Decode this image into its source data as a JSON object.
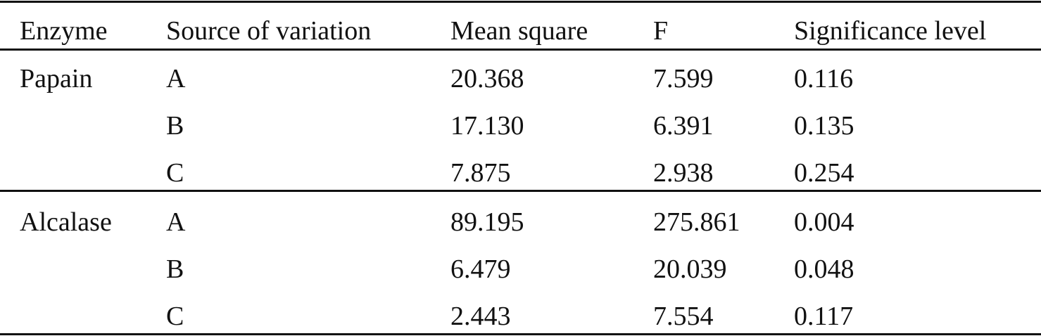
{
  "table": {
    "header": [
      "Enzyme",
      "Source of variation",
      "Mean square",
      "F",
      "Significance level"
    ],
    "groups": [
      {
        "enzyme": "Papain",
        "rows": [
          [
            "A",
            "20.368",
            "7.599",
            "0.116"
          ],
          [
            "B",
            "17.130",
            "6.391",
            "0.135"
          ],
          [
            "C",
            "7.875",
            "2.938",
            "0.254"
          ]
        ]
      },
      {
        "enzyme": "Alcalase",
        "rows": [
          [
            "A",
            "89.195",
            "275.861",
            "0.004"
          ],
          [
            "B",
            "6.479",
            "20.039",
            "0.048"
          ],
          [
            "C",
            "2.443",
            "7.554",
            "0.117"
          ]
        ]
      }
    ]
  }
}
